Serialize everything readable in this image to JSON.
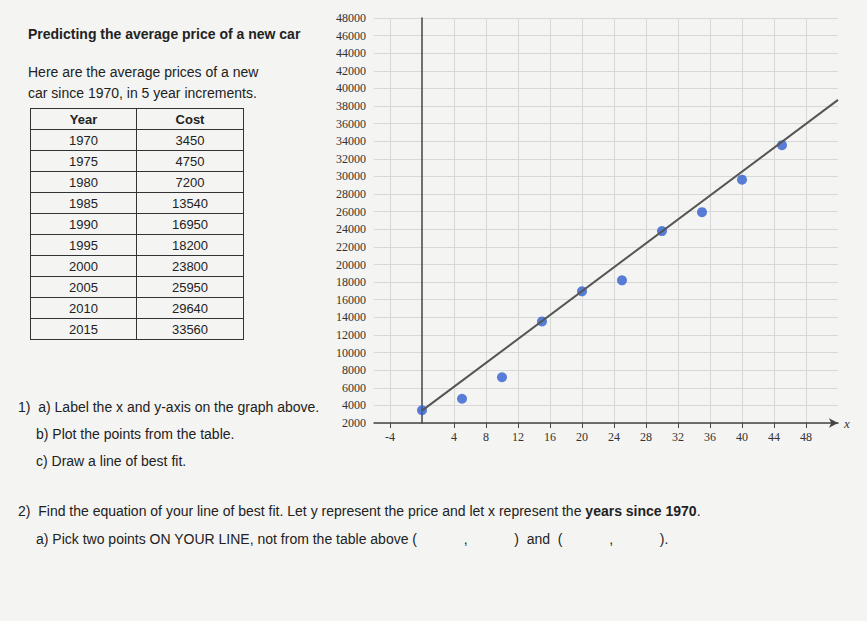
{
  "title": "Predicting the average price of a new car",
  "intro": "Here are the average prices of a new car since 1970, in 5 year increments.",
  "table": {
    "header": [
      "Year",
      "Cost"
    ],
    "rows": [
      [
        1970,
        3450
      ],
      [
        1975,
        4750
      ],
      [
        1980,
        7200
      ],
      [
        1985,
        13540
      ],
      [
        1990,
        16950
      ],
      [
        1995,
        18200
      ],
      [
        2000,
        23800
      ],
      [
        2005,
        25950
      ],
      [
        2010,
        29640
      ],
      [
        2015,
        33560
      ]
    ]
  },
  "chart_data": {
    "type": "scatter",
    "xlabel": "x",
    "xlim": [
      -6,
      52
    ],
    "xticks": [
      -4,
      4,
      8,
      12,
      16,
      20,
      24,
      28,
      32,
      36,
      40,
      44,
      48
    ],
    "ylim": [
      2000,
      48000
    ],
    "yticks": [
      2000,
      4000,
      6000,
      8000,
      10000,
      12000,
      14000,
      16000,
      18000,
      20000,
      22000,
      24000,
      26000,
      28000,
      30000,
      32000,
      34000,
      36000,
      38000,
      40000,
      42000,
      44000,
      46000,
      48000
    ],
    "grid": true,
    "series": [
      {
        "type": "scatter",
        "marker": "circle",
        "color": "#2f5fcf",
        "x": [
          0,
          5,
          10,
          15,
          20,
          25,
          30,
          35,
          40,
          45
        ],
        "values": [
          3450,
          4750,
          7200,
          13540,
          16950,
          18200,
          23800,
          25950,
          29640,
          33560
        ]
      },
      {
        "type": "line",
        "line_style": "solid",
        "color": "#555555",
        "x": [
          0,
          52
        ],
        "values": [
          3400,
          38700
        ]
      }
    ]
  },
  "questions": [
    {
      "left": "1)",
      "text": "a) Label the x and y-axis on the graph above."
    },
    {
      "text": "b) Plot the points from the table."
    },
    {
      "text": "c) Draw a line of best fit."
    },
    {
      "left": "2)",
      "text": "Find the equation of your line of best fit. Let y represent the price and let x represent the ",
      "bold": "years since 1970",
      "end": "."
    },
    {
      "text": "a) Pick two points ON YOUR LINE, not from the table above (            ,            )  and  (            ,            )."
    }
  ]
}
